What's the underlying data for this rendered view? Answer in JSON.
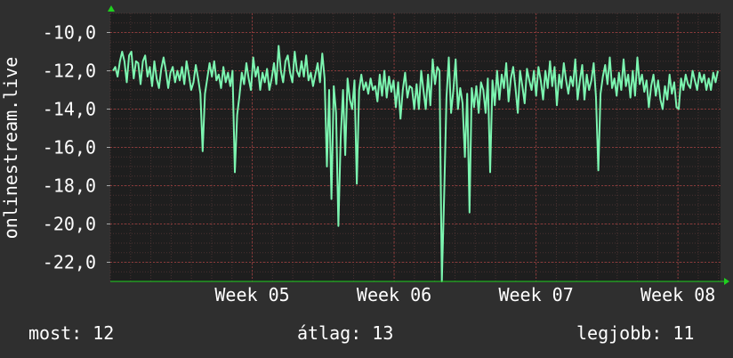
{
  "chart_data": {
    "type": "line",
    "ylabel": "onlinestream.live",
    "ylim": [
      -23.0,
      -9.0
    ],
    "yticks": [
      -10.0,
      -12.0,
      -14.0,
      -16.0,
      -18.0,
      -20.0,
      -22.0
    ],
    "ytick_labels": [
      "-10,0",
      "-12,0",
      "-14,0",
      "-16,0",
      "-18,0",
      "-20,0",
      "-22,0"
    ],
    "xlim": [
      0,
      4.3
    ],
    "x_tick_positions": [
      1.0,
      2.0,
      3.0,
      4.0
    ],
    "x_tick_labels": [
      "Week 05",
      "Week 06",
      "Week 07",
      "Week 08"
    ],
    "grid": true,
    "colors": {
      "background": "#2f2f2f",
      "plot_background": "#1e1e1e",
      "grid": "#5a3a3a",
      "line": "#7cf5b0",
      "axis_arrow": "#1fd11f",
      "text": "#ffffff"
    },
    "series": [
      {
        "values": [
          -12.0,
          -11.8,
          -12.3,
          -11.5,
          -11.0,
          -11.5,
          -12.6,
          -11.2,
          -11.0,
          -12.4,
          -11.5,
          -11.6,
          -12.7,
          -11.5,
          -11.2,
          -12.3,
          -11.8,
          -12.8,
          -11.5,
          -12.4,
          -12.9,
          -11.9,
          -11.3,
          -12.0,
          -12.9,
          -12.1,
          -11.8,
          -12.6,
          -12.0,
          -12.5,
          -11.8,
          -12.7,
          -11.5,
          -12.2,
          -13.0,
          -12.6,
          -11.7,
          -12.4,
          -13.2,
          -16.2,
          -13.2,
          -12.4,
          -11.6,
          -12.3,
          -11.5,
          -12.5,
          -12.2,
          -12.9,
          -11.8,
          -12.6,
          -12.1,
          -12.8,
          -12.0,
          -17.3,
          -14.3,
          -13.3,
          -12.1,
          -12.7,
          -11.6,
          -12.4,
          -13.0,
          -11.3,
          -12.3,
          -11.8,
          -13.0,
          -12.1,
          -12.6,
          -11.9,
          -13.0,
          -12.4,
          -11.6,
          -12.7,
          -10.7,
          -12.0,
          -12.6,
          -11.5,
          -11.2,
          -12.1,
          -12.6,
          -11.0,
          -12.0,
          -12.3,
          -11.5,
          -12.3,
          -11.2,
          -12.5,
          -12.1,
          -12.8,
          -12.2,
          -11.6,
          -12.6,
          -11.1,
          -12.4,
          -17.0,
          -13.0,
          -18.7,
          -12.8,
          -14.2,
          -20.1,
          -15.5,
          -13.0,
          -16.4,
          -12.4,
          -13.5,
          -14.0,
          -12.5,
          -17.9,
          -13.0,
          -12.2,
          -13.0,
          -12.6,
          -13.2,
          -12.4,
          -13.0,
          -12.8,
          -13.6,
          -12.2,
          -13.3,
          -12.0,
          -13.4,
          -12.3,
          -13.1,
          -12.5,
          -13.9,
          -12.6,
          -14.5,
          -13.0,
          -12.1,
          -13.4,
          -12.8,
          -12.9,
          -14.0,
          -12.7,
          -14.0,
          -12.0,
          -13.0,
          -14.0,
          -12.2,
          -13.8,
          -11.4,
          -12.7,
          -11.8,
          -12.0,
          -23.0,
          -18.5,
          -13.4,
          -11.3,
          -14.2,
          -13.0,
          -11.4,
          -14.0,
          -12.9,
          -13.7,
          -16.5,
          -13.2,
          -19.4,
          -12.9,
          -13.9,
          -12.8,
          -14.2,
          -12.6,
          -13.0,
          -14.2,
          -12.4,
          -17.3,
          -12.5,
          -13.8,
          -12.0,
          -13.5,
          -12.2,
          -12.9,
          -11.6,
          -13.6,
          -12.4,
          -11.8,
          -12.9,
          -14.2,
          -12.0,
          -12.8,
          -13.7,
          -11.9,
          -12.5,
          -13.0,
          -12.0,
          -13.3,
          -11.8,
          -12.5,
          -13.5,
          -12.0,
          -12.9,
          -11.5,
          -12.8,
          -11.8,
          -13.8,
          -12.2,
          -12.9,
          -11.6,
          -12.5,
          -13.2,
          -12.3,
          -12.8,
          -11.4,
          -13.5,
          -12.5,
          -11.7,
          -13.5,
          -12.2,
          -13.0,
          -12.5,
          -11.6,
          -13.4,
          -17.2,
          -13.2,
          -12.3,
          -11.7,
          -12.7,
          -11.3,
          -12.9,
          -12.4,
          -13.3,
          -12.1,
          -13.0,
          -11.4,
          -12.8,
          -12.2,
          -13.4,
          -12.0,
          -13.3,
          -11.3,
          -12.7,
          -12.2,
          -13.1,
          -12.5,
          -13.9,
          -12.8,
          -12.2,
          -13.3,
          -12.5,
          -13.5,
          -14.0,
          -12.8,
          -13.5,
          -12.2,
          -13.2,
          -12.6,
          -13.9,
          -14.0,
          -12.4,
          -13.0,
          -12.2,
          -12.7,
          -12.9,
          -12.0,
          -12.5,
          -13.0,
          -12.1,
          -12.6,
          -12.2,
          -13.0,
          -12.4,
          -13.0,
          -12.1,
          -12.6,
          -12.0
        ]
      }
    ]
  },
  "legend": {
    "current": "most: 12",
    "average": "átlag: 13",
    "best": "legjobb: 11"
  }
}
